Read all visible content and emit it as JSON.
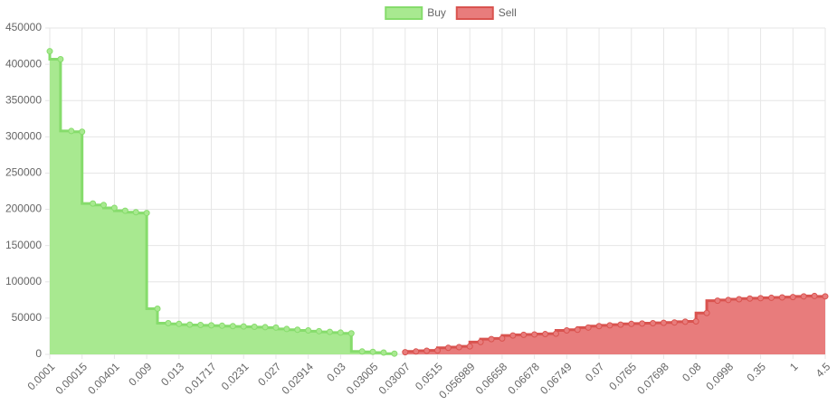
{
  "chart_data": {
    "type": "stepped-area",
    "categories": [
      "0.0001",
      null,
      null,
      "0.00015",
      null,
      null,
      "0.00401",
      null,
      null,
      "0.009",
      null,
      null,
      "0.013",
      null,
      null,
      "0.01717",
      null,
      null,
      "0.0231",
      null,
      null,
      "0.027",
      null,
      null,
      "0.02914",
      null,
      null,
      "0.03",
      null,
      null,
      "0.03005",
      null,
      null,
      "0.03007",
      null,
      null,
      "0.0515",
      null,
      null,
      "0.056989",
      null,
      null,
      "0.06658",
      null,
      null,
      "0.06678",
      null,
      null,
      "0.06749",
      null,
      null,
      "0.07",
      null,
      null,
      "0.0765",
      null,
      null,
      "0.07698",
      null,
      null,
      "0.08",
      null,
      null,
      "0.0998",
      null,
      null,
      "0.35",
      null,
      null,
      "1",
      null,
      null,
      "4.5"
    ],
    "series": [
      {
        "name": "Buy",
        "color": "#86dc6c",
        "fill": "#a8e990",
        "values": [
          418000,
          407000,
          308000,
          307000,
          208000,
          206000,
          202000,
          198000,
          196000,
          195000,
          63000,
          43000,
          42000,
          41000,
          40500,
          40000,
          39500,
          39000,
          38500,
          38000,
          37500,
          37000,
          35000,
          34000,
          33000,
          32000,
          31000,
          30000,
          29000,
          4000,
          3500,
          2500,
          1000,
          null,
          null,
          null,
          null,
          null,
          null,
          null,
          null,
          null,
          null,
          null,
          null,
          null,
          null,
          null,
          null,
          null,
          null,
          null,
          null,
          null,
          null,
          null,
          null,
          null,
          null,
          null,
          null,
          null,
          null,
          null,
          null,
          null,
          null,
          null,
          null,
          null,
          null,
          null,
          null
        ]
      },
      {
        "name": "Sell",
        "color": "#d9534f",
        "fill": "#e87c7c",
        "values": [
          null,
          null,
          null,
          null,
          null,
          null,
          null,
          null,
          null,
          null,
          null,
          null,
          null,
          null,
          null,
          null,
          null,
          null,
          null,
          null,
          null,
          null,
          null,
          null,
          null,
          null,
          null,
          null,
          null,
          null,
          null,
          null,
          null,
          3000,
          4000,
          5000,
          5500,
          9000,
          10000,
          11000,
          17000,
          21000,
          22000,
          26000,
          27000,
          27500,
          28000,
          28500,
          33000,
          34000,
          37000,
          39000,
          40000,
          41000,
          42000,
          42500,
          43000,
          43500,
          44000,
          45000,
          45500,
          57000,
          74000,
          75000,
          76000,
          77000,
          77500,
          78000,
          78500,
          79000,
          80000,
          80500,
          80000
        ]
      }
    ],
    "ylim": [
      0,
      450000
    ],
    "yticks": [
      0,
      50000,
      100000,
      150000,
      200000,
      250000,
      300000,
      350000,
      400000,
      450000
    ],
    "grid": true,
    "legend": "top"
  }
}
